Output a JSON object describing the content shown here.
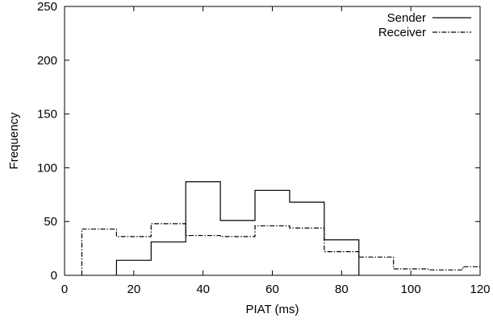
{
  "chart_data": {
    "type": "line",
    "subtype": "step-histogram",
    "title": "",
    "xlabel": "PIAT (ms)",
    "ylabel": "Frequency",
    "xlim": [
      0,
      120
    ],
    "ylim": [
      0,
      250
    ],
    "xticks": [
      0,
      20,
      40,
      60,
      80,
      100,
      120
    ],
    "yticks": [
      0,
      50,
      100,
      150,
      200,
      250
    ],
    "grid": false,
    "legend_position": "top-right",
    "series": [
      {
        "name": "Sender",
        "style": "solid",
        "color": "#000000",
        "bin_edges": [
          15,
          25,
          35,
          45,
          55,
          65,
          75,
          85
        ],
        "values": [
          14,
          31,
          87,
          51,
          79,
          68,
          33
        ]
      },
      {
        "name": "Receiver",
        "style": "dash-dot",
        "color": "#000000",
        "bin_edges": [
          5,
          15,
          25,
          35,
          45,
          55,
          65,
          75,
          85,
          95,
          105,
          115,
          120
        ],
        "values": [
          43,
          36,
          48,
          37,
          36,
          46,
          44,
          22,
          17,
          6,
          5,
          8
        ]
      }
    ]
  }
}
